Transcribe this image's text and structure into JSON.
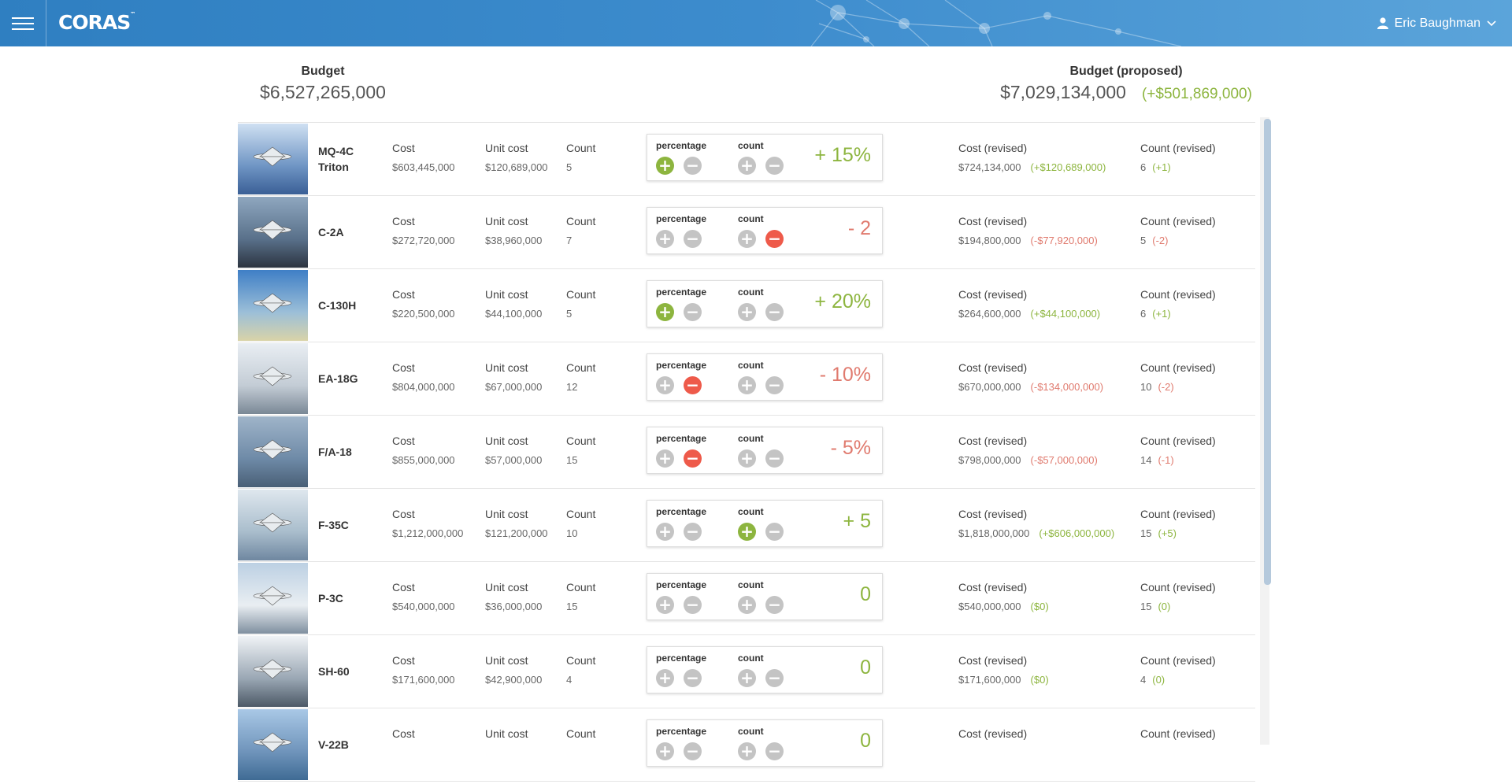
{
  "header": {
    "logo": "CORAS",
    "logo_mark": "™",
    "user_name": "Eric Baughman"
  },
  "budget": {
    "label": "Budget",
    "value": "$6,527,265,000",
    "proposed_label": "Budget (proposed)",
    "proposed_value": "$7,029,134,000",
    "proposed_delta": "(+$501,869,000)"
  },
  "labels": {
    "cost": "Cost",
    "unit_cost": "Unit cost",
    "count": "Count",
    "percentage": "percentage",
    "count_ctrl": "count",
    "cost_revised": "Cost (revised)",
    "count_revised": "Count (revised)"
  },
  "colors": {
    "positive": "#8db53f",
    "negative": "#e07a6e",
    "active_minus": "#ee5a4a",
    "header_blue": "#2f7fc1"
  },
  "rows": [
    {
      "name": "MQ-4C Triton",
      "cost": "$603,445,000",
      "unit_cost": "$120,689,000",
      "count": "5",
      "active": "pct-plus",
      "delta": "+ 15%",
      "delta_sign": "pos",
      "cost_revised": "$724,134,000",
      "cost_delta": "(+$120,689,000)",
      "cost_delta_sign": "pos",
      "count_revised": "6",
      "count_delta": "(+1)",
      "count_delta_sign": "pos"
    },
    {
      "name": "C-2A",
      "cost": "$272,720,000",
      "unit_cost": "$38,960,000",
      "count": "7",
      "active": "cnt-minus",
      "delta": "- 2",
      "delta_sign": "neg",
      "cost_revised": "$194,800,000",
      "cost_delta": "(-$77,920,000)",
      "cost_delta_sign": "neg",
      "count_revised": "5",
      "count_delta": "(-2)",
      "count_delta_sign": "neg"
    },
    {
      "name": "C-130H",
      "cost": "$220,500,000",
      "unit_cost": "$44,100,000",
      "count": "5",
      "active": "pct-plus",
      "delta": "+ 20%",
      "delta_sign": "pos",
      "cost_revised": "$264,600,000",
      "cost_delta": "(+$44,100,000)",
      "cost_delta_sign": "pos",
      "count_revised": "6",
      "count_delta": "(+1)",
      "count_delta_sign": "pos"
    },
    {
      "name": "EA-18G",
      "cost": "$804,000,000",
      "unit_cost": "$67,000,000",
      "count": "12",
      "active": "pct-minus",
      "delta": "- 10%",
      "delta_sign": "neg",
      "cost_revised": "$670,000,000",
      "cost_delta": "(-$134,000,000)",
      "cost_delta_sign": "neg",
      "count_revised": "10",
      "count_delta": "(-2)",
      "count_delta_sign": "neg"
    },
    {
      "name": "F/A-18",
      "cost": "$855,000,000",
      "unit_cost": "$57,000,000",
      "count": "15",
      "active": "pct-minus",
      "delta": "- 5%",
      "delta_sign": "neg",
      "cost_revised": "$798,000,000",
      "cost_delta": "(-$57,000,000)",
      "cost_delta_sign": "neg",
      "count_revised": "14",
      "count_delta": "(-1)",
      "count_delta_sign": "neg"
    },
    {
      "name": "F-35C",
      "cost": "$1,212,000,000",
      "unit_cost": "$121,200,000",
      "count": "10",
      "active": "cnt-plus",
      "delta": "+ 5",
      "delta_sign": "pos",
      "cost_revised": "$1,818,000,000",
      "cost_delta": "(+$606,000,000)",
      "cost_delta_sign": "pos",
      "count_revised": "15",
      "count_delta": "(+5)",
      "count_delta_sign": "pos"
    },
    {
      "name": "P-3C",
      "cost": "$540,000,000",
      "unit_cost": "$36,000,000",
      "count": "15",
      "active": "none",
      "delta": "0",
      "delta_sign": "pos",
      "cost_revised": "$540,000,000",
      "cost_delta": "($0)",
      "cost_delta_sign": "pos",
      "count_revised": "15",
      "count_delta": "(0)",
      "count_delta_sign": "pos"
    },
    {
      "name": "SH-60",
      "cost": "$171,600,000",
      "unit_cost": "$42,900,000",
      "count": "4",
      "active": "none",
      "delta": "0",
      "delta_sign": "pos",
      "cost_revised": "$171,600,000",
      "cost_delta": "($0)",
      "cost_delta_sign": "pos",
      "count_revised": "4",
      "count_delta": "(0)",
      "count_delta_sign": "pos"
    },
    {
      "name": "V-22B",
      "cost": "",
      "unit_cost": "",
      "count": "",
      "active": "none",
      "delta": "0",
      "delta_sign": "pos",
      "cost_revised": "",
      "cost_delta": "",
      "cost_delta_sign": "pos",
      "count_revised": "",
      "count_delta": "",
      "count_delta_sign": "pos"
    }
  ]
}
